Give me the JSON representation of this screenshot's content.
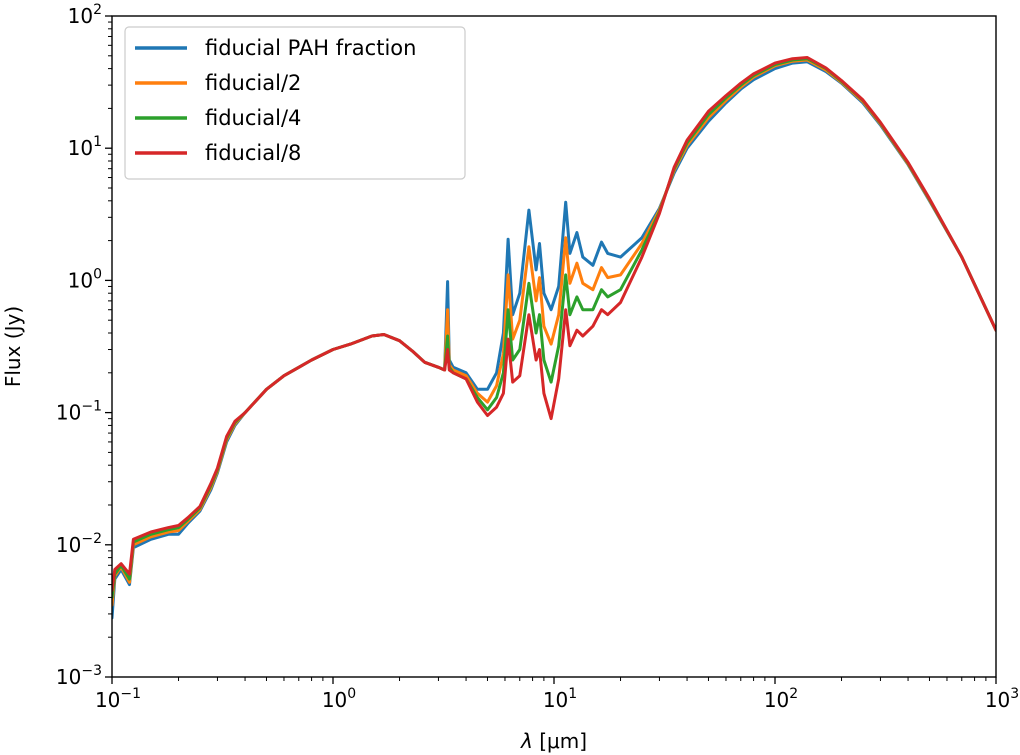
{
  "chart_data": {
    "type": "line",
    "title": "",
    "xlabel": "λ [μm]",
    "xlabel_parts": {
      "symbol": "λ",
      "unit": "[μm]"
    },
    "ylabel": "Flux (Jy)",
    "xscale": "log",
    "yscale": "log",
    "xlim": [
      0.1,
      1000
    ],
    "ylim": [
      0.001,
      100
    ],
    "grid": false,
    "legend_position": "top-left",
    "x_ticks": [
      {
        "value": 0.1,
        "base": "10",
        "exp": "−1"
      },
      {
        "value": 1,
        "base": "10",
        "exp": "0"
      },
      {
        "value": 10,
        "base": "10",
        "exp": "1"
      },
      {
        "value": 100,
        "base": "10",
        "exp": "2"
      },
      {
        "value": 1000,
        "base": "10",
        "exp": "3"
      }
    ],
    "y_ticks": [
      {
        "value": 0.001,
        "base": "10",
        "exp": "−3"
      },
      {
        "value": 0.01,
        "base": "10",
        "exp": "−2"
      },
      {
        "value": 0.1,
        "base": "10",
        "exp": "−1"
      },
      {
        "value": 1,
        "base": "10",
        "exp": "0"
      },
      {
        "value": 10,
        "base": "10",
        "exp": "1"
      },
      {
        "value": 100,
        "base": "10",
        "exp": "2"
      }
    ],
    "series": [
      {
        "name": "fiducial PAH fraction",
        "color": "#1f77b4",
        "points": [
          [
            0.1,
            0.0028
          ],
          [
            0.103,
            0.0055
          ],
          [
            0.11,
            0.0065
          ],
          [
            0.12,
            0.005
          ],
          [
            0.125,
            0.0095
          ],
          [
            0.15,
            0.011
          ],
          [
            0.18,
            0.012
          ],
          [
            0.2,
            0.012
          ],
          [
            0.22,
            0.0145
          ],
          [
            0.25,
            0.018
          ],
          [
            0.28,
            0.026
          ],
          [
            0.3,
            0.035
          ],
          [
            0.33,
            0.06
          ],
          [
            0.36,
            0.08
          ],
          [
            0.4,
            0.1
          ],
          [
            0.5,
            0.15
          ],
          [
            0.6,
            0.19
          ],
          [
            0.7,
            0.22
          ],
          [
            0.8,
            0.25
          ],
          [
            1.0,
            0.3
          ],
          [
            1.2,
            0.33
          ],
          [
            1.5,
            0.38
          ],
          [
            1.7,
            0.39
          ],
          [
            2.0,
            0.35
          ],
          [
            2.3,
            0.29
          ],
          [
            2.6,
            0.24
          ],
          [
            3.0,
            0.22
          ],
          [
            3.2,
            0.21
          ],
          [
            3.3,
            0.98
          ],
          [
            3.36,
            0.25
          ],
          [
            3.5,
            0.22
          ],
          [
            4.0,
            0.2
          ],
          [
            4.5,
            0.15
          ],
          [
            5.0,
            0.15
          ],
          [
            5.5,
            0.2
          ],
          [
            5.9,
            0.4
          ],
          [
            6.2,
            2.05
          ],
          [
            6.5,
            0.55
          ],
          [
            7.0,
            0.8
          ],
          [
            7.7,
            3.4
          ],
          [
            8.3,
            1.2
          ],
          [
            8.6,
            1.9
          ],
          [
            9.0,
            0.8
          ],
          [
            9.7,
            0.6
          ],
          [
            10.5,
            0.9
          ],
          [
            11.3,
            3.9
          ],
          [
            11.8,
            1.6
          ],
          [
            12.7,
            2.3
          ],
          [
            13.5,
            1.5
          ],
          [
            15.0,
            1.3
          ],
          [
            16.4,
            1.95
          ],
          [
            17.5,
            1.6
          ],
          [
            20,
            1.5
          ],
          [
            25,
            2.1
          ],
          [
            30,
            3.5
          ],
          [
            35,
            6.5
          ],
          [
            40,
            10
          ],
          [
            50,
            16
          ],
          [
            60,
            22
          ],
          [
            70,
            28
          ],
          [
            80,
            33
          ],
          [
            100,
            40
          ],
          [
            120,
            44
          ],
          [
            140,
            45
          ],
          [
            170,
            38
          ],
          [
            200,
            31
          ],
          [
            250,
            22
          ],
          [
            300,
            15
          ],
          [
            400,
            7.5
          ],
          [
            500,
            4
          ],
          [
            700,
            1.5
          ],
          [
            1000,
            0.42
          ]
        ]
      },
      {
        "name": "fiducial/2",
        "color": "#ff7f0e",
        "points": [
          [
            0.1,
            0.0035
          ],
          [
            0.103,
            0.0058
          ],
          [
            0.11,
            0.0068
          ],
          [
            0.12,
            0.0052
          ],
          [
            0.125,
            0.01
          ],
          [
            0.15,
            0.0115
          ],
          [
            0.18,
            0.0125
          ],
          [
            0.2,
            0.0128
          ],
          [
            0.22,
            0.015
          ],
          [
            0.25,
            0.0185
          ],
          [
            0.28,
            0.027
          ],
          [
            0.3,
            0.036
          ],
          [
            0.33,
            0.062
          ],
          [
            0.36,
            0.082
          ],
          [
            0.4,
            0.1
          ],
          [
            0.5,
            0.15
          ],
          [
            0.6,
            0.19
          ],
          [
            0.7,
            0.22
          ],
          [
            0.8,
            0.25
          ],
          [
            1.0,
            0.3
          ],
          [
            1.2,
            0.33
          ],
          [
            1.5,
            0.38
          ],
          [
            1.7,
            0.39
          ],
          [
            2.0,
            0.35
          ],
          [
            2.3,
            0.29
          ],
          [
            2.6,
            0.24
          ],
          [
            3.0,
            0.22
          ],
          [
            3.2,
            0.21
          ],
          [
            3.3,
            0.6
          ],
          [
            3.36,
            0.23
          ],
          [
            3.5,
            0.21
          ],
          [
            4.0,
            0.19
          ],
          [
            4.5,
            0.14
          ],
          [
            5.0,
            0.12
          ],
          [
            5.5,
            0.16
          ],
          [
            5.9,
            0.28
          ],
          [
            6.2,
            1.1
          ],
          [
            6.5,
            0.36
          ],
          [
            7.0,
            0.5
          ],
          [
            7.7,
            1.8
          ],
          [
            8.3,
            0.7
          ],
          [
            8.6,
            1.05
          ],
          [
            9.0,
            0.45
          ],
          [
            9.7,
            0.33
          ],
          [
            10.5,
            0.55
          ],
          [
            11.3,
            2.1
          ],
          [
            11.8,
            0.95
          ],
          [
            12.7,
            1.35
          ],
          [
            13.5,
            0.95
          ],
          [
            15.0,
            0.85
          ],
          [
            16.4,
            1.25
          ],
          [
            17.5,
            1.05
          ],
          [
            20,
            1.1
          ],
          [
            25,
            1.9
          ],
          [
            30,
            3.4
          ],
          [
            35,
            6.8
          ],
          [
            40,
            10.5
          ],
          [
            50,
            17
          ],
          [
            60,
            23
          ],
          [
            70,
            29
          ],
          [
            80,
            34.5
          ],
          [
            100,
            42
          ],
          [
            120,
            45.5
          ],
          [
            140,
            46.5
          ],
          [
            170,
            39
          ],
          [
            200,
            31.5
          ],
          [
            250,
            22.5
          ],
          [
            300,
            15.3
          ],
          [
            400,
            7.6
          ],
          [
            500,
            4.05
          ],
          [
            700,
            1.5
          ],
          [
            1000,
            0.42
          ]
        ]
      },
      {
        "name": "fiducial/4",
        "color": "#2ca02c",
        "points": [
          [
            0.1,
            0.004
          ],
          [
            0.103,
            0.006
          ],
          [
            0.11,
            0.007
          ],
          [
            0.12,
            0.0055
          ],
          [
            0.125,
            0.0105
          ],
          [
            0.15,
            0.012
          ],
          [
            0.18,
            0.013
          ],
          [
            0.2,
            0.0135
          ],
          [
            0.22,
            0.0155
          ],
          [
            0.25,
            0.019
          ],
          [
            0.28,
            0.028
          ],
          [
            0.3,
            0.037
          ],
          [
            0.33,
            0.064
          ],
          [
            0.36,
            0.084
          ],
          [
            0.4,
            0.1
          ],
          [
            0.5,
            0.15
          ],
          [
            0.6,
            0.19
          ],
          [
            0.7,
            0.22
          ],
          [
            0.8,
            0.25
          ],
          [
            1.0,
            0.3
          ],
          [
            1.2,
            0.33
          ],
          [
            1.5,
            0.38
          ],
          [
            1.7,
            0.39
          ],
          [
            2.0,
            0.35
          ],
          [
            2.3,
            0.29
          ],
          [
            2.6,
            0.24
          ],
          [
            3.0,
            0.22
          ],
          [
            3.2,
            0.21
          ],
          [
            3.3,
            0.38
          ],
          [
            3.36,
            0.22
          ],
          [
            3.5,
            0.2
          ],
          [
            4.0,
            0.18
          ],
          [
            4.5,
            0.13
          ],
          [
            5.0,
            0.105
          ],
          [
            5.5,
            0.13
          ],
          [
            5.9,
            0.2
          ],
          [
            6.2,
            0.6
          ],
          [
            6.5,
            0.25
          ],
          [
            7.0,
            0.3
          ],
          [
            7.7,
            0.95
          ],
          [
            8.3,
            0.4
          ],
          [
            8.6,
            0.55
          ],
          [
            9.0,
            0.25
          ],
          [
            9.7,
            0.17
          ],
          [
            10.5,
            0.32
          ],
          [
            11.3,
            1.1
          ],
          [
            11.8,
            0.55
          ],
          [
            12.7,
            0.75
          ],
          [
            13.5,
            0.6
          ],
          [
            15.0,
            0.6
          ],
          [
            16.4,
            0.85
          ],
          [
            17.5,
            0.75
          ],
          [
            20,
            0.85
          ],
          [
            25,
            1.7
          ],
          [
            30,
            3.3
          ],
          [
            35,
            7
          ],
          [
            40,
            11
          ],
          [
            50,
            18
          ],
          [
            60,
            24
          ],
          [
            70,
            30
          ],
          [
            80,
            35.5
          ],
          [
            100,
            43
          ],
          [
            120,
            46.5
          ],
          [
            140,
            47.5
          ],
          [
            170,
            40
          ],
          [
            200,
            32
          ],
          [
            250,
            23
          ],
          [
            300,
            15.5
          ],
          [
            400,
            7.7
          ],
          [
            500,
            4.1
          ],
          [
            700,
            1.5
          ],
          [
            1000,
            0.42
          ]
        ]
      },
      {
        "name": "fiducial/8",
        "color": "#d62728",
        "points": [
          [
            0.1,
            0.0045
          ],
          [
            0.103,
            0.0065
          ],
          [
            0.11,
            0.0072
          ],
          [
            0.12,
            0.006
          ],
          [
            0.125,
            0.011
          ],
          [
            0.15,
            0.0125
          ],
          [
            0.18,
            0.0135
          ],
          [
            0.2,
            0.014
          ],
          [
            0.22,
            0.016
          ],
          [
            0.25,
            0.0195
          ],
          [
            0.28,
            0.029
          ],
          [
            0.3,
            0.038
          ],
          [
            0.33,
            0.066
          ],
          [
            0.36,
            0.086
          ],
          [
            0.4,
            0.1
          ],
          [
            0.5,
            0.15
          ],
          [
            0.6,
            0.19
          ],
          [
            0.7,
            0.22
          ],
          [
            0.8,
            0.25
          ],
          [
            1.0,
            0.3
          ],
          [
            1.2,
            0.33
          ],
          [
            1.5,
            0.38
          ],
          [
            1.7,
            0.39
          ],
          [
            2.0,
            0.35
          ],
          [
            2.3,
            0.29
          ],
          [
            2.6,
            0.24
          ],
          [
            3.0,
            0.22
          ],
          [
            3.2,
            0.21
          ],
          [
            3.3,
            0.3
          ],
          [
            3.36,
            0.21
          ],
          [
            3.5,
            0.2
          ],
          [
            4.0,
            0.18
          ],
          [
            4.5,
            0.12
          ],
          [
            5.0,
            0.095
          ],
          [
            5.5,
            0.11
          ],
          [
            5.9,
            0.14
          ],
          [
            6.2,
            0.36
          ],
          [
            6.5,
            0.17
          ],
          [
            7.0,
            0.19
          ],
          [
            7.7,
            0.55
          ],
          [
            8.3,
            0.25
          ],
          [
            8.6,
            0.3
          ],
          [
            9.0,
            0.14
          ],
          [
            9.7,
            0.09
          ],
          [
            10.5,
            0.18
          ],
          [
            11.3,
            0.6
          ],
          [
            11.8,
            0.32
          ],
          [
            12.7,
            0.42
          ],
          [
            13.5,
            0.38
          ],
          [
            15.0,
            0.45
          ],
          [
            16.4,
            0.6
          ],
          [
            17.5,
            0.55
          ],
          [
            20,
            0.68
          ],
          [
            25,
            1.5
          ],
          [
            30,
            3.2
          ],
          [
            35,
            7.2
          ],
          [
            40,
            11.5
          ],
          [
            50,
            19
          ],
          [
            60,
            25
          ],
          [
            70,
            31
          ],
          [
            80,
            36.5
          ],
          [
            100,
            44
          ],
          [
            120,
            47.5
          ],
          [
            140,
            48.5
          ],
          [
            170,
            40.5
          ],
          [
            200,
            32.5
          ],
          [
            250,
            23.2
          ],
          [
            300,
            15.7
          ],
          [
            400,
            7.8
          ],
          [
            500,
            4.15
          ],
          [
            700,
            1.5
          ],
          [
            1000,
            0.42
          ]
        ]
      }
    ]
  }
}
